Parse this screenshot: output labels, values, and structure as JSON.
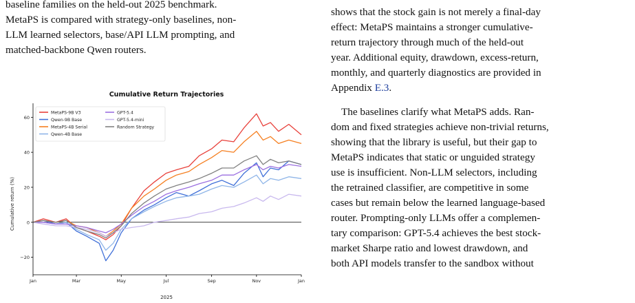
{
  "left_column": {
    "lines": [
      "baseline families on the held-out 2025 benchmark.",
      "MetaPS is compared with strategy-only baselines, non-",
      "LLM learned selectors, base/API LLM prompting, and",
      "matched-backbone Qwen routers."
    ]
  },
  "right_column": {
    "paragraph1": {
      "lines": [
        "shows that the stock gain is not merely a final-day",
        "effect: MetaPS maintains a stronger cumulative-",
        "return trajectory through much of the held-out",
        "year. Additional equity, drawdown, excess-return,",
        "monthly, and quarterly diagnostics are provided in"
      ],
      "last_line_prefix": "Appendix ",
      "last_line_link": "E.3",
      "last_line_suffix": "."
    },
    "paragraph2": {
      "lines": [
        "The baselines clarify what MetaPS adds. Ran-",
        "dom and fixed strategies achieve non-trivial returns,",
        "showing that the library is useful, but their gap to",
        "MetaPS indicates that static or unguided strategy",
        "use is insufficient. Non-LLM selectors, including",
        "the retrained classifier, are competitive in some",
        "cases but remain below the learned language-based",
        "router. Prompting-only LLMs offer a complemen-",
        "tary comparison: GPT-5.4 achieves the best stock-",
        "market Sharpe ratio and lowest drawdown, and",
        "both API models transfer to the sandbox without"
      ]
    }
  },
  "chart_data": {
    "type": "line",
    "title": "Cumulative Return Trajectories",
    "xlabel": "2025",
    "ylabel": "Cumulative return (%)",
    "x_ticks": [
      "Jan",
      "Mar",
      "May",
      "Jul",
      "Sep",
      "Nov",
      "Jan"
    ],
    "y_ticks": [
      -20,
      0,
      20,
      40,
      60
    ],
    "ylim": [
      -30,
      68
    ],
    "grid": false,
    "legend_position": "top-left",
    "x": [
      "2025-01-01",
      "2025-01-15",
      "2025-02-01",
      "2025-02-15",
      "2025-03-01",
      "2025-03-15",
      "2025-04-01",
      "2025-04-10",
      "2025-04-20",
      "2025-05-01",
      "2025-05-15",
      "2025-06-01",
      "2025-06-15",
      "2025-07-01",
      "2025-07-15",
      "2025-08-01",
      "2025-08-15",
      "2025-09-01",
      "2025-09-15",
      "2025-10-01",
      "2025-10-15",
      "2025-11-01",
      "2025-11-10",
      "2025-11-20",
      "2025-12-01",
      "2025-12-15",
      "2026-01-01"
    ],
    "series": [
      {
        "name": "MetaPS-9B V3",
        "color": "#e8403a",
        "values": [
          0,
          2,
          0,
          2,
          -3,
          -5,
          -8,
          -10,
          -7,
          -2,
          8,
          18,
          23,
          28,
          30,
          32,
          38,
          42,
          47,
          46,
          54,
          62,
          55,
          57,
          52,
          56,
          50
        ]
      },
      {
        "name": "Qwen-9B Base",
        "color": "#3f6fd8",
        "values": [
          0,
          1,
          -1,
          0,
          -5,
          -8,
          -12,
          -22,
          -16,
          -6,
          2,
          7,
          10,
          14,
          17,
          15,
          18,
          22,
          24,
          21,
          28,
          34,
          26,
          31,
          30,
          35,
          33
        ]
      },
      {
        "name": "MetaPS-4B Serial",
        "color": "#f57f20",
        "values": [
          0,
          1,
          0,
          1,
          -2,
          -3,
          -6,
          -8,
          -5,
          -1,
          8,
          15,
          19,
          24,
          27,
          29,
          33,
          37,
          41,
          40,
          46,
          52,
          47,
          49,
          45,
          47,
          45
        ]
      },
      {
        "name": "Qwen-4B Base",
        "color": "#8fb5e8",
        "values": [
          0,
          0,
          -1,
          0,
          -4,
          -7,
          -10,
          -16,
          -12,
          -4,
          2,
          6,
          9,
          12,
          14,
          15,
          16,
          19,
          21,
          20,
          23,
          27,
          22,
          25,
          24,
          26,
          25
        ]
      },
      {
        "name": "GPT-5.4",
        "color": "#9b6fe0",
        "values": [
          0,
          0,
          -1,
          -1,
          -2,
          -3,
          -5,
          -6,
          -4,
          -1,
          4,
          9,
          12,
          16,
          18,
          20,
          22,
          24,
          27,
          27,
          30,
          33,
          30,
          32,
          31,
          33,
          32
        ]
      },
      {
        "name": "GPT-5.4-mini",
        "color": "#c8b8ee",
        "values": [
          0,
          -1,
          -2,
          -2,
          -3,
          -4,
          -6,
          -8,
          -6,
          -4,
          -3,
          -2,
          0,
          1,
          2,
          3,
          5,
          6,
          8,
          9,
          11,
          14,
          12,
          15,
          13,
          16,
          15
        ]
      },
      {
        "name": "Random Strategy",
        "color": "#808080",
        "values": [
          0,
          1,
          0,
          1,
          -3,
          -5,
          -7,
          -9,
          -6,
          -2,
          5,
          11,
          15,
          19,
          21,
          23,
          25,
          28,
          31,
          31,
          35,
          38,
          33,
          36,
          34,
          35,
          33
        ]
      }
    ]
  }
}
